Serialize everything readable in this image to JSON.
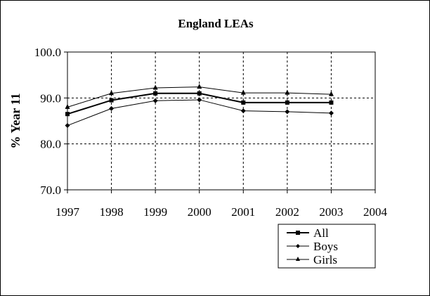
{
  "chart_data": {
    "type": "line",
    "title": "England LEAs",
    "xlabel": "",
    "ylabel": "% Year 11",
    "x": [
      1997,
      1998,
      1999,
      2000,
      2001,
      2002,
      2003
    ],
    "xlim": [
      1997,
      2004
    ],
    "ylim": [
      70.0,
      100.0
    ],
    "xticks": [
      "1997",
      "1998",
      "1999",
      "2000",
      "2001",
      "2002",
      "2003",
      "2004"
    ],
    "yticks": [
      "70.0",
      "80.0",
      "90.0",
      "100.0"
    ],
    "grid": true,
    "legend_position": "bottom-right",
    "series": [
      {
        "name": "All",
        "marker": "square",
        "values": [
          86.5,
          89.5,
          91.0,
          91.0,
          89.0,
          89.0,
          89.0
        ]
      },
      {
        "name": "Boys",
        "marker": "diamond",
        "values": [
          84.0,
          87.7,
          89.4,
          89.6,
          87.2,
          87.0,
          86.7
        ]
      },
      {
        "name": "Girls",
        "marker": "triangle",
        "values": [
          88.0,
          91.0,
          92.2,
          92.4,
          91.1,
          91.1,
          90.8
        ]
      }
    ]
  }
}
